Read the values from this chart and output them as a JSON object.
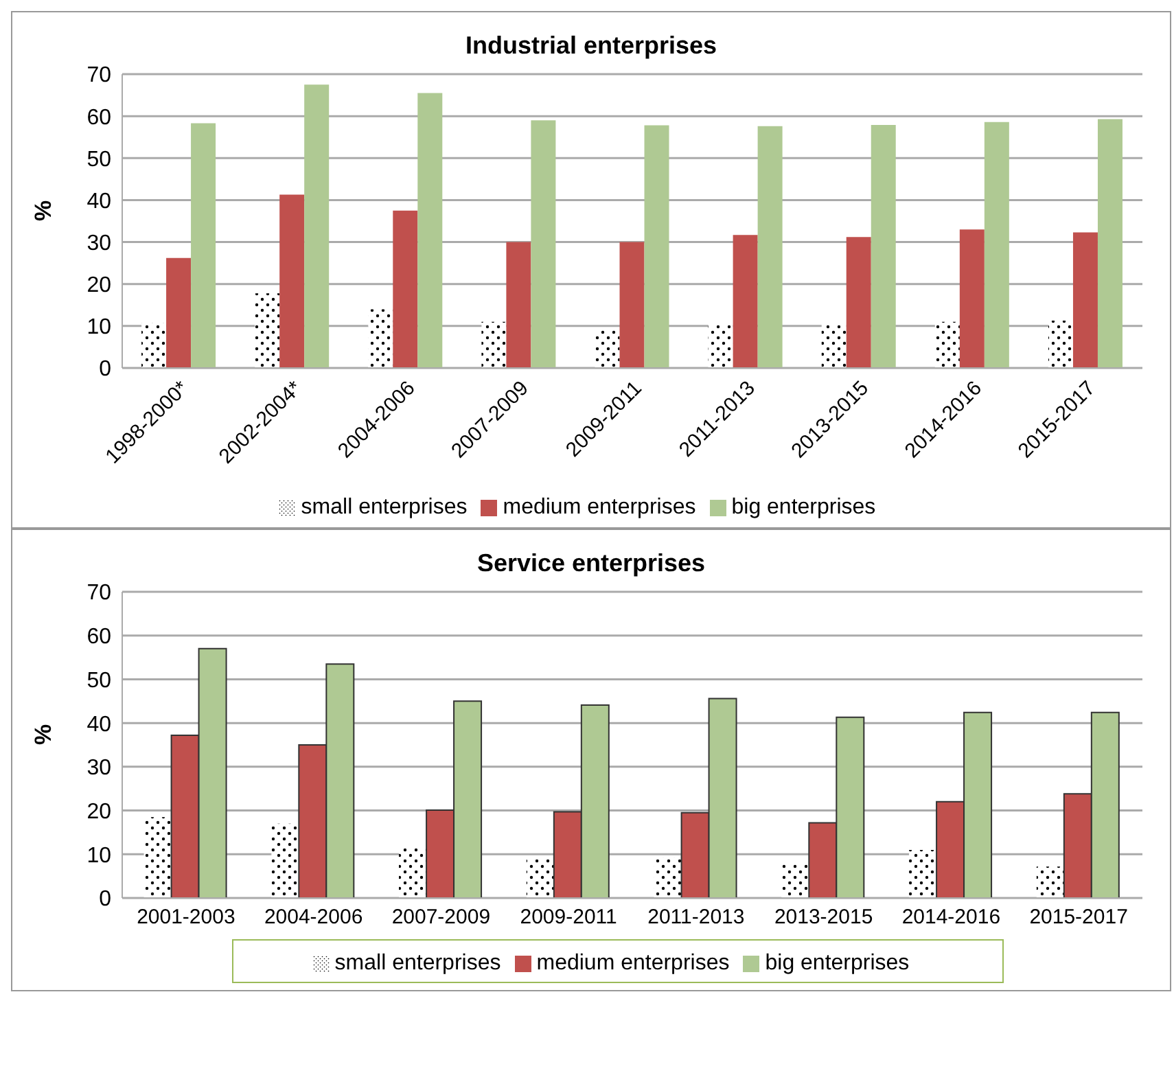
{
  "chart_data": [
    {
      "type": "bar",
      "title": "Industrial enterprises",
      "ylabel": "%",
      "categories": [
        "1998-2000*",
        "2002-2004*",
        "2004-2006",
        "2007-2009",
        "2009-2011",
        "2011-2013",
        "2013-2015",
        "2014-2016",
        "2015-2017"
      ],
      "series": [
        {
          "name": "small enterprises",
          "color": "#ffffff",
          "values": [
            10.8,
            17.8,
            14,
            11,
            9,
            10.5,
            10.6,
            11,
            11.3
          ]
        },
        {
          "name": "medium enterprises",
          "color": "#c0504d",
          "values": [
            26.2,
            41.3,
            37.5,
            30,
            30,
            31.7,
            31.2,
            33,
            32.3
          ]
        },
        {
          "name": "big enterprises",
          "color": "#afc993",
          "values": [
            58.3,
            67.5,
            65.5,
            59,
            57.8,
            57.6,
            57.9,
            58.6,
            59.3
          ]
        }
      ],
      "ylim": [
        0,
        70
      ],
      "yticks": [
        0,
        10,
        20,
        30,
        40,
        50,
        60,
        70
      ],
      "grid": "y",
      "legend": "bottom"
    },
    {
      "type": "bar",
      "title": "Service enterprises",
      "ylabel": "%",
      "categories": [
        "2001-2003",
        "2004-2006",
        "2007-2009",
        "2009-2011",
        "2011-2013",
        "2013-2015",
        "2014-2016",
        "2015-2017"
      ],
      "series": [
        {
          "name": "small enterprises",
          "color": "#ffffff",
          "values": [
            18.5,
            17,
            11.7,
            9.2,
            9.3,
            7.7,
            11,
            7.2
          ]
        },
        {
          "name": "medium enterprises",
          "color": "#c0504d",
          "values": [
            37.2,
            35,
            20.1,
            19.7,
            19.5,
            17.2,
            22,
            23.8
          ]
        },
        {
          "name": "big enterprises",
          "color": "#afc993",
          "values": [
            57,
            53.5,
            45,
            44.1,
            45.6,
            41.3,
            42.4,
            42.4
          ]
        }
      ],
      "ylim": [
        0,
        70
      ],
      "yticks": [
        0,
        10,
        20,
        30,
        40,
        50,
        60,
        70
      ],
      "grid": "y",
      "legend": "bottom"
    }
  ]
}
